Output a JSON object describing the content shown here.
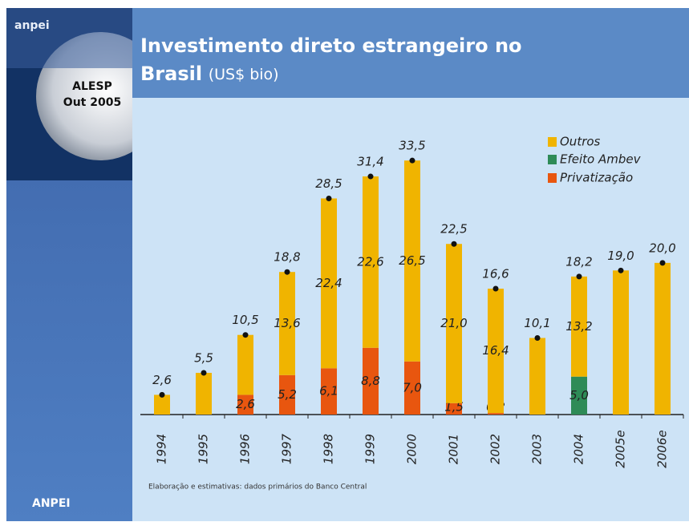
{
  "sidebar": {
    "logo": "anpei",
    "event": "ALESP",
    "date": "Out 2005",
    "footer": "ANPEI"
  },
  "chart_data": {
    "type": "stacked_bar",
    "title": "Investimento direto estrangeiro no",
    "title_line2": "Brasil",
    "subtitle": "(US$ bio)",
    "source": "Elaboração e estimativas: dados primários do Banco Central",
    "categories": [
      "1994",
      "1995",
      "1996",
      "1997",
      "1998",
      "1999",
      "2000",
      "2001",
      "2002",
      "2003",
      "2004",
      "2005e",
      "2006e"
    ],
    "series": [
      {
        "name": "Outros",
        "color": "#f0b400",
        "values": [
          2.6,
          5.5,
          7.9,
          13.6,
          22.4,
          22.6,
          26.5,
          21.0,
          16.4,
          10.1,
          13.2,
          19.0,
          20.0
        ],
        "value_labels": [
          null,
          null,
          null,
          "13,6",
          "22,4",
          "22,6",
          "26,5",
          "21,0",
          "16,4",
          null,
          "13,2",
          null,
          null
        ]
      },
      {
        "name": "Efeito Ambev",
        "color": "#2e8b57",
        "values": [
          null,
          null,
          null,
          null,
          null,
          null,
          null,
          null,
          null,
          null,
          5.0,
          null,
          null
        ],
        "value_labels": [
          null,
          null,
          null,
          null,
          null,
          null,
          null,
          null,
          null,
          null,
          "5,0",
          null,
          null
        ]
      },
      {
        "name": "Privatização",
        "color": "#e8560f",
        "values": [
          null,
          null,
          2.6,
          5.2,
          6.1,
          8.8,
          7.0,
          1.5,
          0.2,
          null,
          null,
          null,
          null
        ],
        "value_labels": [
          null,
          null,
          "2,6",
          "5,2",
          "6,1",
          "8,8",
          "7,0",
          "1,5",
          "0,2",
          null,
          null,
          null,
          null
        ]
      }
    ],
    "totals": {
      "values": [
        2.6,
        5.5,
        10.5,
        18.8,
        28.5,
        31.4,
        33.5,
        22.5,
        16.6,
        10.1,
        18.2,
        19.0,
        20.0
      ],
      "value_labels": [
        "2,6",
        "5,5",
        "10,5",
        "18,8",
        "28,5",
        "31,4",
        "33,5",
        "22,5",
        "16,6",
        "10,1",
        "18,2",
        "19,0",
        "20,0"
      ]
    },
    "ylim": [
      0,
      35
    ]
  }
}
